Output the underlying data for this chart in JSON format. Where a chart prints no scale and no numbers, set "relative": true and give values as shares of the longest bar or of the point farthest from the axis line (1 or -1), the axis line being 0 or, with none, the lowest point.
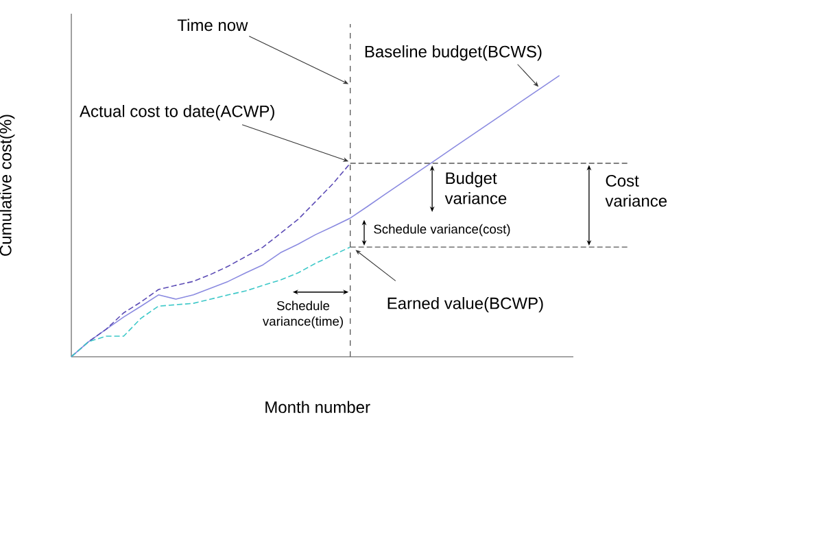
{
  "chart_data": {
    "type": "line",
    "relative": true,
    "xlabel": "Month number",
    "ylabel": "Cumulative cost(%)",
    "categories": [
      null,
      null,
      null,
      null,
      null,
      null,
      null,
      null,
      null,
      null,
      null,
      null,
      null,
      null,
      null,
      null,
      null,
      null,
      null,
      null,
      null,
      null,
      null,
      null,
      null,
      null,
      null,
      null,
      null
    ],
    "series": [
      {
        "name": "Baseline budget(BCWS)",
        "color": "#8a8ae0",
        "line_style": "solid",
        "values": [
          0,
          0.054,
          0.098,
          0.141,
          0.18,
          0.22,
          0.205,
          0.22,
          0.244,
          0.268,
          0.298,
          0.327,
          0.37,
          0.4,
          0.434,
          0.463,
          0.493,
          0.535,
          0.578,
          0.62,
          0.662,
          0.704,
          0.747,
          0.789,
          0.831,
          0.873,
          0.916,
          0.958,
          1
        ]
      },
      {
        "name": "Actual cost to date(ACWP)",
        "color": "#5b4bb5",
        "line_style": "dashed",
        "values": [
          0,
          0.054,
          0.098,
          0.156,
          0.195,
          0.239,
          0.254,
          0.268,
          0.293,
          0.322,
          0.356,
          0.39,
          0.439,
          0.488,
          0.551,
          0.615,
          0.688,
          null,
          null,
          null,
          null,
          null,
          null,
          null,
          null,
          null,
          null,
          null,
          null
        ]
      },
      {
        "name": "Earned value(BCWP)",
        "color": "#3cc8c8",
        "line_style": "dashed",
        "values": [
          0,
          0.054,
          0.073,
          0.073,
          0.137,
          0.18,
          0.185,
          0.19,
          0.205,
          0.22,
          0.234,
          0.254,
          0.273,
          0.298,
          0.332,
          0.361,
          0.39,
          null,
          null,
          null,
          null,
          null,
          null,
          null,
          null,
          null,
          null,
          null,
          null
        ]
      }
    ],
    "ref_lines": [
      {
        "axis": "y",
        "value": 0.688,
        "color": "#555555",
        "line_style": "dashed"
      },
      {
        "axis": "y",
        "value": 0.39,
        "color": "#555555",
        "line_style": "dashed"
      }
    ],
    "annotations": [
      "Time now",
      "Budget variance",
      "Cost variance",
      "Schedule variance(cost)",
      "Schedule variance(time)"
    ]
  }
}
